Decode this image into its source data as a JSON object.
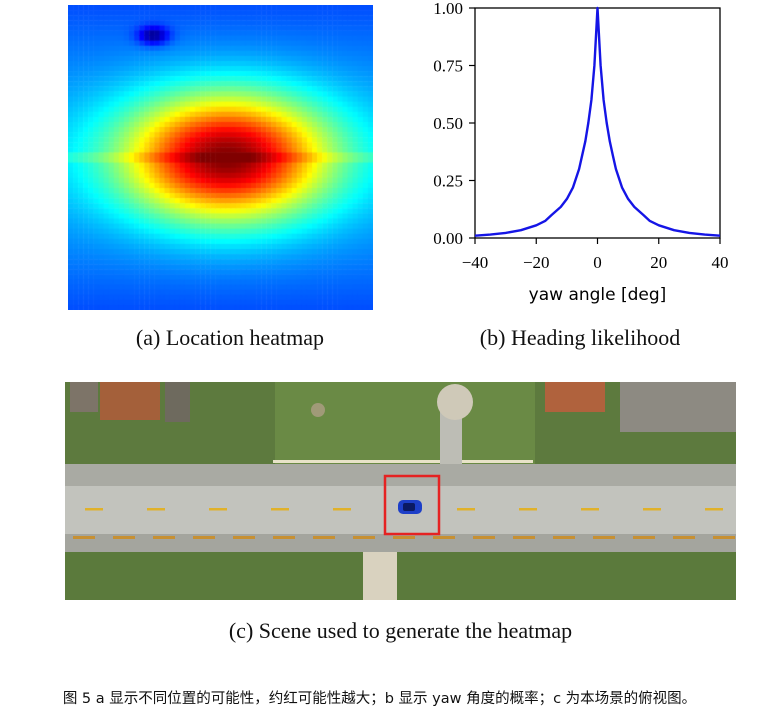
{
  "panel_a": {
    "caption": "(a) Location heatmap"
  },
  "panel_b": {
    "caption": "(b) Heading likelihood"
  },
  "panel_c": {
    "caption": "(c) Scene used to generate the heatmap"
  },
  "figure_caption": "图 5 a 显示不同位置的可能性，约红可能性越大；b 显示 yaw 角度的概率；c 为本场景的俯视图。",
  "colors": {
    "curve": "#1515e6",
    "highlight_box": "#e52222",
    "car": "#1d3fc8"
  },
  "chart_data": [
    {
      "type": "heatmap",
      "colormap": "jet",
      "peak": {
        "col": 0.52,
        "row": 0.5
      },
      "secondary_low": {
        "col": 0.28,
        "row": 0.1
      }
    },
    {
      "type": "line",
      "xlabel": "yaw angle [deg]",
      "ylabel": "",
      "xlim": [
        -40,
        40
      ],
      "ylim": [
        0,
        1
      ],
      "xticks": [
        -40,
        -20,
        0,
        20,
        40
      ],
      "xtick_labels": [
        "−40",
        "−20",
        "0",
        "20",
        "40"
      ],
      "yticks": [
        0.0,
        0.25,
        0.5,
        0.75,
        1.0
      ],
      "ytick_labels": [
        "0.00",
        "0.25",
        "0.50",
        "0.75",
        "1.00"
      ],
      "series": [
        {
          "x": [
            -40,
            -35,
            -30,
            -25,
            -20,
            -17,
            -15,
            -12,
            -10,
            -8,
            -6,
            -5,
            -4,
            -3,
            -2,
            -1,
            0,
            1,
            2,
            3,
            4,
            5,
            6,
            8,
            10,
            12,
            15,
            17,
            20,
            25,
            30,
            35,
            40
          ],
          "values": [
            0.01,
            0.015,
            0.022,
            0.034,
            0.055,
            0.075,
            0.1,
            0.135,
            0.17,
            0.22,
            0.3,
            0.36,
            0.42,
            0.5,
            0.6,
            0.75,
            1.0,
            0.75,
            0.6,
            0.5,
            0.42,
            0.36,
            0.3,
            0.22,
            0.17,
            0.135,
            0.1,
            0.075,
            0.055,
            0.034,
            0.022,
            0.015,
            0.01
          ]
        }
      ]
    }
  ]
}
